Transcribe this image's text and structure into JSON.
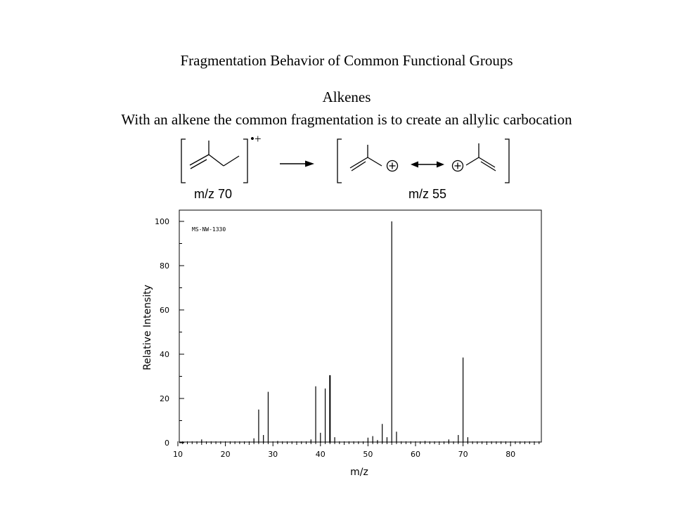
{
  "page": {
    "title": "Fragmentation Behavior of Common Functional Groups",
    "section": "Alkenes",
    "intro": "With an alkene the common fragmentation is to create an allylic carbocation"
  },
  "scheme": {
    "radical_cation_charge": "•+",
    "plus_symbol": "+",
    "label_parent": "m/z 70",
    "label_fragment": "m/z 55"
  },
  "chart_data": {
    "type": "bar",
    "id_label": "MS-NW-1330",
    "xlabel": "m/z",
    "ylabel": "Relative Intensity",
    "xlim": [
      10,
      86
    ],
    "ylim": [
      0,
      100
    ],
    "x_ticks": [
      10,
      20,
      30,
      40,
      50,
      60,
      70,
      80
    ],
    "y_ticks": [
      0,
      20,
      40,
      60,
      80,
      100
    ],
    "grid": false,
    "peaks": [
      {
        "mz": 15,
        "intensity": 1.5
      },
      {
        "mz": 26,
        "intensity": 2
      },
      {
        "mz": 27,
        "intensity": 15
      },
      {
        "mz": 28,
        "intensity": 3.5
      },
      {
        "mz": 29,
        "intensity": 23
      },
      {
        "mz": 31,
        "intensity": 0.8
      },
      {
        "mz": 38,
        "intensity": 1.5
      },
      {
        "mz": 39,
        "intensity": 25.5
      },
      {
        "mz": 40,
        "intensity": 4.5
      },
      {
        "mz": 41,
        "intensity": 24.5
      },
      {
        "mz": 42,
        "intensity": 30.5
      },
      {
        "mz": 43,
        "intensity": 2.5
      },
      {
        "mz": 50,
        "intensity": 2.3
      },
      {
        "mz": 51,
        "intensity": 3
      },
      {
        "mz": 52,
        "intensity": 1.2
      },
      {
        "mz": 53,
        "intensity": 8.5
      },
      {
        "mz": 54,
        "intensity": 2.5
      },
      {
        "mz": 55,
        "intensity": 100
      },
      {
        "mz": 56,
        "intensity": 5
      },
      {
        "mz": 62,
        "intensity": 0.8
      },
      {
        "mz": 67,
        "intensity": 1.5
      },
      {
        "mz": 69,
        "intensity": 3.5
      },
      {
        "mz": 70,
        "intensity": 38.5
      },
      {
        "mz": 71,
        "intensity": 2.5
      }
    ]
  }
}
